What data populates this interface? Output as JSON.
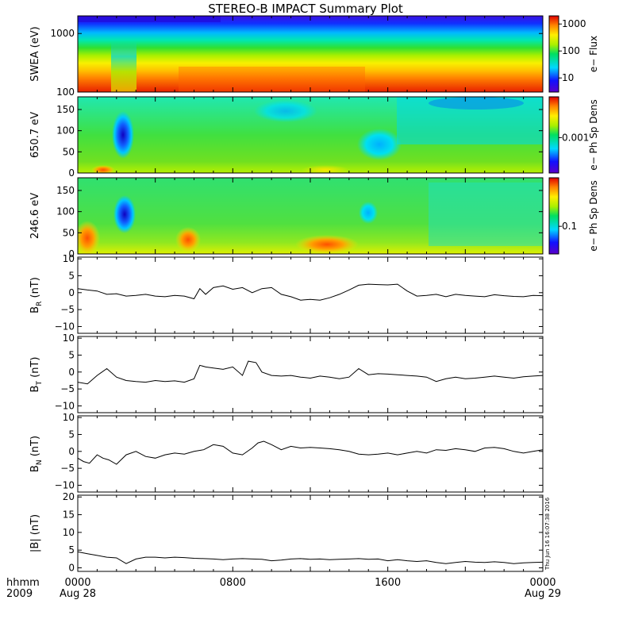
{
  "title": "STEREO-B IMPACT Summary Plot",
  "footer": {
    "hhmm_label": "hhmm",
    "year_label": "2009",
    "timestamp": "Thu Jun 16 16:07:38 2016"
  },
  "x_axis": {
    "range_hours": [
      0,
      24
    ],
    "ticks": [
      {
        "hour": 0,
        "label": "0000",
        "sub": "Aug 28"
      },
      {
        "hour": 8,
        "label": "0800",
        "sub": ""
      },
      {
        "hour": 16,
        "label": "1600",
        "sub": ""
      },
      {
        "hour": 24,
        "label": "0000",
        "sub": "Aug 29"
      }
    ]
  },
  "chart_data": [
    {
      "type": "heatmap",
      "ylabel": "SWEA (eV)",
      "y_scale": "log",
      "ylim": [
        100,
        2000
      ],
      "yticks": [
        {
          "value": 100,
          "label": "100"
        },
        {
          "value": 1000,
          "label": "1000"
        }
      ],
      "colorbar": {
        "label": "e− Flux",
        "scale": "log",
        "ticks": [
          {
            "value": 10,
            "label": "10"
          },
          {
            "value": 100,
            "label": "100"
          },
          {
            "value": 1000,
            "label": "1000"
          }
        ],
        "range": [
          3,
          2000
        ]
      }
    },
    {
      "type": "heatmap",
      "ylabel": "650.7 eV",
      "ylim": [
        0,
        180
      ],
      "yticks": [
        {
          "value": 0,
          "label": "0"
        },
        {
          "value": 50,
          "label": "50"
        },
        {
          "value": 100,
          "label": "100"
        },
        {
          "value": 150,
          "label": "150"
        }
      ],
      "colorbar": {
        "label": "e− Ph Sp Dens",
        "scale": "log",
        "ticks": [
          {
            "value": 0.001,
            "label": "0.001"
          }
        ],
        "range": [
          0.0003,
          0.004
        ]
      }
    },
    {
      "type": "heatmap",
      "ylabel": "246.6 eV",
      "ylim": [
        0,
        180
      ],
      "yticks": [
        {
          "value": 0,
          "label": "0"
        },
        {
          "value": 50,
          "label": "50"
        },
        {
          "value": 100,
          "label": "100"
        },
        {
          "value": 150,
          "label": "150"
        }
      ],
      "colorbar": {
        "label": "e− Ph Sp Dens",
        "scale": "log",
        "ticks": [
          {
            "value": 0.1,
            "label": "0.1"
          }
        ],
        "range": [
          0.04,
          0.5
        ]
      }
    },
    {
      "type": "line",
      "ylabel_base": "B",
      "ylabel_sub": "R",
      "ylabel_unit": " (nT)",
      "ylim": [
        -12,
        10.5
      ],
      "yticks": [
        {
          "value": -10,
          "label": "−10"
        },
        {
          "value": -5,
          "label": "−5"
        },
        {
          "value": 0,
          "label": "0"
        },
        {
          "value": 5,
          "label": "5"
        },
        {
          "value": 10,
          "label": "10"
        }
      ],
      "x": [
        0,
        0.5,
        1,
        1.5,
        2,
        2.5,
        3,
        3.5,
        4,
        4.5,
        5,
        5.5,
        6,
        6.3,
        6.6,
        7,
        7.5,
        8,
        8.5,
        9,
        9.5,
        10,
        10.5,
        11,
        11.5,
        12,
        12.5,
        13,
        13.5,
        14,
        14.5,
        15,
        15.5,
        16,
        16.5,
        17,
        17.5,
        18,
        18.5,
        19,
        19.5,
        20,
        20.5,
        21,
        21.5,
        22,
        22.5,
        23,
        23.5,
        24
      ],
      "y": [
        1.2,
        0.8,
        0.5,
        -0.5,
        -0.3,
        -1,
        -0.8,
        -0.5,
        -1,
        -1.2,
        -0.8,
        -1,
        -1.8,
        1.2,
        -0.5,
        1.5,
        2,
        1,
        1.5,
        0,
        1.2,
        1.5,
        -0.5,
        -1.2,
        -2.2,
        -2,
        -2.2,
        -1.5,
        -0.5,
        0.8,
        2.2,
        2.5,
        2.4,
        2.3,
        2.5,
        0.5,
        -1,
        -0.8,
        -0.5,
        -1.2,
        -0.5,
        -0.8,
        -1,
        -1.2,
        -0.6,
        -0.9,
        -1.1,
        -1.2,
        -0.8,
        -0.9
      ]
    },
    {
      "type": "line",
      "ylabel_base": "B",
      "ylabel_sub": "T",
      "ylabel_unit": " (nT)",
      "ylim": [
        -12,
        10.5
      ],
      "yticks": [
        {
          "value": -10,
          "label": "−10"
        },
        {
          "value": -5,
          "label": "−5"
        },
        {
          "value": 0,
          "label": "0"
        },
        {
          "value": 5,
          "label": "5"
        },
        {
          "value": 10,
          "label": "10"
        }
      ],
      "x": [
        0,
        0.5,
        1,
        1.5,
        2,
        2.5,
        3,
        3.5,
        4,
        4.5,
        5,
        5.5,
        6,
        6.3,
        6.6,
        7,
        7.5,
        8,
        8.5,
        8.8,
        9.2,
        9.5,
        10,
        10.5,
        11,
        11.5,
        12,
        12.5,
        13,
        13.5,
        14,
        14.5,
        15,
        15.5,
        16,
        16.5,
        17,
        17.5,
        18,
        18.5,
        19,
        19.5,
        20,
        20.5,
        21,
        21.5,
        22,
        22.5,
        23,
        23.5,
        24
      ],
      "y": [
        -3,
        -3.5,
        -1,
        1,
        -1.5,
        -2.5,
        -2.8,
        -3,
        -2.5,
        -2.8,
        -2.6,
        -3,
        -2,
        2,
        1.5,
        1.2,
        0.8,
        1.5,
        -1,
        3.2,
        2.8,
        0,
        -1,
        -1.2,
        -1,
        -1.5,
        -1.8,
        -1.2,
        -1.5,
        -2,
        -1.5,
        1,
        -0.8,
        -0.5,
        -0.6,
        -0.8,
        -1,
        -1.2,
        -1.5,
        -2.8,
        -2,
        -1.5,
        -2,
        -1.8,
        -1.5,
        -1.2,
        -1.5,
        -1.8,
        -1.4,
        -1.2,
        -1
      ]
    },
    {
      "type": "line",
      "ylabel_base": "B",
      "ylabel_sub": "N",
      "ylabel_unit": " (nT)",
      "ylim": [
        -12,
        10.5
      ],
      "yticks": [
        {
          "value": -10,
          "label": "−10"
        },
        {
          "value": -5,
          "label": "−5"
        },
        {
          "value": 0,
          "label": "0"
        },
        {
          "value": 5,
          "label": "5"
        },
        {
          "value": 10,
          "label": "10"
        }
      ],
      "x": [
        0,
        0.3,
        0.6,
        1,
        1.3,
        1.6,
        2,
        2.5,
        3,
        3.5,
        4,
        4.5,
        5,
        5.5,
        6,
        6.5,
        7,
        7.5,
        8,
        8.5,
        9,
        9.3,
        9.6,
        10,
        10.5,
        11,
        11.5,
        12,
        12.5,
        13,
        13.5,
        14,
        14.5,
        15,
        15.5,
        16,
        16.5,
        17,
        17.5,
        18,
        18.5,
        19,
        19.5,
        20,
        20.5,
        21,
        21.5,
        22,
        22.5,
        23,
        23.5,
        24
      ],
      "y": [
        -2,
        -3,
        -3.5,
        -1,
        -2,
        -2.5,
        -3.8,
        -1,
        0,
        -1.5,
        -2,
        -1,
        -0.5,
        -0.8,
        0,
        0.5,
        2,
        1.5,
        -0.5,
        -1,
        1,
        2.5,
        3,
        2,
        0.5,
        1.5,
        1,
        1.2,
        1,
        0.8,
        0.5,
        0,
        -0.8,
        -1,
        -0.8,
        -0.5,
        -1,
        -0.5,
        0,
        -0.5,
        0.5,
        0.3,
        0.8,
        0.5,
        0,
        1,
        1.2,
        0.8,
        0,
        -0.5,
        0,
        0.5
      ]
    },
    {
      "type": "line",
      "ylabel": "|B| (nT)",
      "ylim": [
        -1,
        20.5
      ],
      "yticks": [
        {
          "value": 0,
          "label": "0"
        },
        {
          "value": 5,
          "label": "5"
        },
        {
          "value": 10,
          "label": "10"
        },
        {
          "value": 15,
          "label": "15"
        },
        {
          "value": 20,
          "label": "20"
        }
      ],
      "x": [
        0,
        0.5,
        1,
        1.5,
        2,
        2.5,
        3,
        3.5,
        4,
        4.5,
        5,
        5.5,
        6,
        6.5,
        7,
        7.5,
        8,
        8.5,
        9,
        9.5,
        10,
        10.5,
        11,
        11.5,
        12,
        12.5,
        13,
        13.5,
        14,
        14.5,
        15,
        15.5,
        16,
        16.5,
        17,
        17.5,
        18,
        18.5,
        19,
        19.5,
        20,
        20.5,
        21,
        21.5,
        22,
        22.5,
        23,
        23.5,
        24
      ],
      "y": [
        4.5,
        4,
        3.5,
        3,
        2.8,
        1.2,
        2.5,
        3,
        3,
        2.8,
        3,
        2.9,
        2.7,
        2.6,
        2.5,
        2.3,
        2.5,
        2.6,
        2.5,
        2.4,
        2,
        2.2,
        2.5,
        2.6,
        2.4,
        2.5,
        2.3,
        2.4,
        2.5,
        2.6,
        2.4,
        2.5,
        2,
        2.3,
        2,
        1.8,
        2,
        1.5,
        1.2,
        1.5,
        1.8,
        1.6,
        1.5,
        1.7,
        1.5,
        1.2,
        1.4,
        1.5,
        1.6
      ]
    }
  ]
}
